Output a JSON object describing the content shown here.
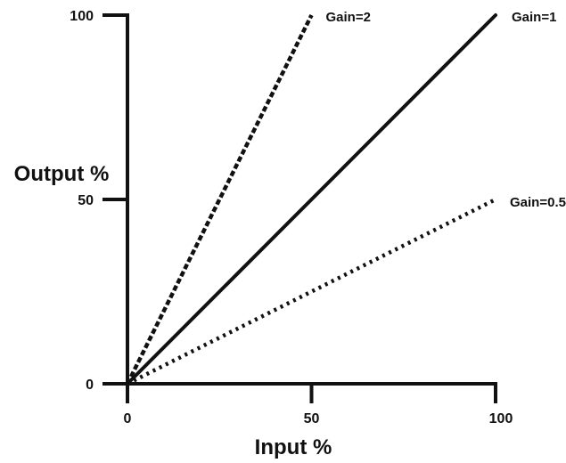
{
  "chart_data": {
    "type": "line",
    "title": "",
    "xlabel": "Input %",
    "ylabel": "Output %",
    "xlim": [
      0,
      100
    ],
    "ylim": [
      0,
      100
    ],
    "x_ticks": [
      {
        "value": 0,
        "label": "0"
      },
      {
        "value": 50,
        "label": "50"
      },
      {
        "value": 100,
        "label": "100"
      }
    ],
    "y_ticks": [
      {
        "value": 0,
        "label": "0"
      },
      {
        "value": 50,
        "label": "50"
      },
      {
        "value": 100,
        "label": "100"
      }
    ],
    "grid": false,
    "legend": "none",
    "series": [
      {
        "name": "Gain=2",
        "line_style": "dashed",
        "color": "#111111",
        "points": [
          [
            0,
            0
          ],
          [
            50,
            100
          ]
        ]
      },
      {
        "name": "Gain=1",
        "line_style": "solid",
        "color": "#111111",
        "points": [
          [
            0,
            0
          ],
          [
            100,
            100
          ]
        ]
      },
      {
        "name": "Gain=0.5",
        "line_style": "dotted",
        "color": "#111111",
        "points": [
          [
            0,
            0
          ],
          [
            100,
            50
          ]
        ]
      }
    ]
  }
}
